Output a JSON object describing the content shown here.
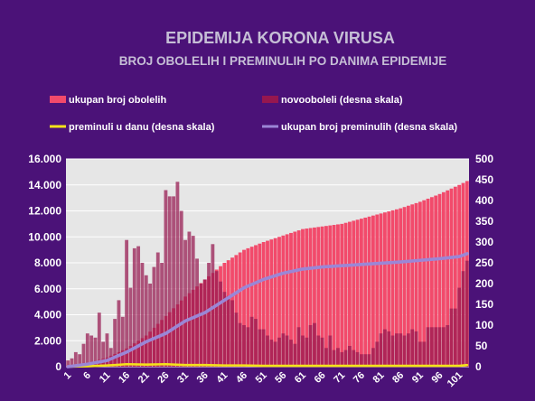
{
  "chart_data": {
    "type": "bar",
    "title": "EPIDEMIJA KORONA VIRUSA",
    "subtitle": "BROJ OBOLELIH I PREMINULIH PO DANIMA EPIDEMIJE",
    "xlabel": "",
    "ylabel": "",
    "ylim": [
      0,
      16000
    ],
    "y2lim": [
      0,
      500
    ],
    "y_ticks": [
      "0",
      "2.000",
      "4.000",
      "6.000",
      "8.000",
      "10.000",
      "12.000",
      "14.000",
      "16.000"
    ],
    "y2_ticks": [
      "0",
      "50",
      "100",
      "150",
      "200",
      "250",
      "300",
      "350",
      "400",
      "450",
      "500"
    ],
    "x_ticks": [
      "1",
      "6",
      "11",
      "16",
      "21",
      "26",
      "31",
      "36",
      "41",
      "46",
      "51",
      "56",
      "61",
      "66",
      "71",
      "76",
      "81",
      "86",
      "91",
      "96",
      "101"
    ],
    "grid": true,
    "legend_position": "top",
    "series": [
      {
        "name": "ukupan broj obolelih",
        "axis": "left",
        "kind": "bar",
        "color": "#f24a6b",
        "x": [
          1,
          6,
          11,
          16,
          21,
          26,
          31,
          36,
          41,
          46,
          51,
          56,
          61,
          66,
          71,
          76,
          81,
          86,
          91,
          96,
          101,
          103
        ],
        "values": [
          100,
          250,
          700,
          1400,
          2400,
          3900,
          5400,
          6700,
          8000,
          9000,
          9600,
          10100,
          10600,
          10800,
          11000,
          11400,
          11800,
          12200,
          12700,
          13300,
          14000,
          14300
        ]
      },
      {
        "name": "novooboleli (desna skala)",
        "axis": "right",
        "kind": "bar",
        "color": "#96174f",
        "x": [
          1,
          2,
          3,
          4,
          5,
          6,
          7,
          8,
          9,
          10,
          11,
          12,
          13,
          14,
          15,
          16,
          17,
          18,
          19,
          20,
          21,
          22,
          23,
          24,
          25,
          26,
          27,
          28,
          29,
          30,
          31,
          32,
          33,
          34,
          35,
          36,
          37,
          38,
          39,
          40,
          41,
          42,
          43,
          44,
          45,
          46,
          47,
          48,
          49,
          50,
          51,
          52,
          53,
          54,
          55,
          56,
          57,
          58,
          59,
          60,
          61,
          62,
          63,
          64,
          65,
          66,
          67,
          68,
          69,
          70,
          71,
          72,
          73,
          74,
          75,
          76,
          77,
          78,
          79,
          80,
          81,
          82,
          83,
          84,
          85,
          86,
          87,
          88,
          89,
          90,
          91,
          92,
          93,
          94,
          95,
          96,
          97,
          98,
          99,
          100,
          101,
          102,
          103
        ],
        "values": [
          15,
          20,
          35,
          30,
          55,
          80,
          75,
          70,
          130,
          60,
          80,
          45,
          115,
          160,
          120,
          305,
          190,
          285,
          290,
          250,
          220,
          200,
          240,
          275,
          250,
          425,
          410,
          410,
          445,
          375,
          305,
          325,
          315,
          260,
          200,
          210,
          250,
          295,
          230,
          205,
          180,
          170,
          160,
          130,
          105,
          100,
          95,
          120,
          115,
          90,
          90,
          75,
          65,
          60,
          70,
          80,
          75,
          65,
          55,
          95,
          75,
          70,
          100,
          105,
          75,
          70,
          45,
          75,
          40,
          45,
          35,
          40,
          50,
          40,
          35,
          30,
          30,
          30,
          45,
          60,
          80,
          90,
          85,
          75,
          80,
          80,
          75,
          80,
          90,
          85,
          60,
          60,
          95,
          95,
          95,
          95,
          95,
          100,
          140,
          140,
          190,
          230,
          255
        ]
      },
      {
        "name": "preminuli u danu (desna skala)",
        "axis": "right",
        "kind": "line",
        "color": "#f5e31a",
        "x": [
          1,
          6,
          11,
          13,
          16,
          21,
          26,
          31,
          36,
          41,
          46,
          51,
          56,
          61,
          66,
          71,
          76,
          81,
          86,
          91,
          96,
          101,
          103
        ],
        "values": [
          0,
          1,
          3,
          4,
          6,
          5,
          6,
          4,
          4,
          3,
          3,
          2,
          2,
          2,
          2,
          2,
          2,
          2,
          2,
          2,
          2,
          2,
          4
        ]
      },
      {
        "name": "ukupan broj preminulih (desna skala)",
        "axis": "right",
        "kind": "line",
        "color": "#9b86d6",
        "x": [
          1,
          6,
          11,
          16,
          21,
          26,
          31,
          36,
          41,
          46,
          51,
          56,
          61,
          66,
          71,
          76,
          81,
          86,
          91,
          96,
          101,
          103
        ],
        "values": [
          0,
          6,
          15,
          35,
          60,
          80,
          110,
          130,
          160,
          190,
          210,
          225,
          235,
          240,
          243,
          246,
          249,
          252,
          256,
          260,
          265,
          272
        ]
      }
    ]
  }
}
